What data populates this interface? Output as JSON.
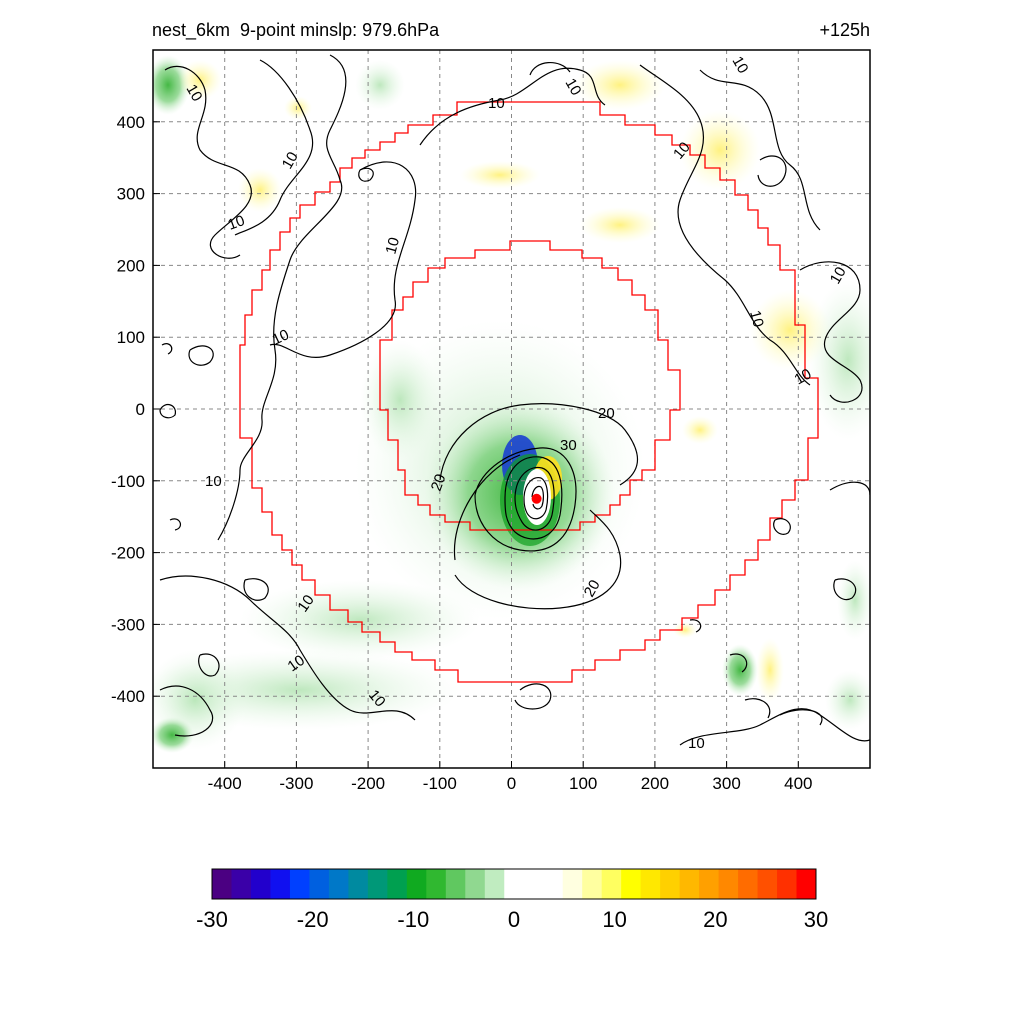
{
  "chart_data": {
    "type": "contour",
    "title_left": "nest_6km  9-point minslp: 979.6hPa",
    "title_right": "+125h",
    "x_ticks": [
      -400,
      -300,
      -200,
      -100,
      0,
      100,
      200,
      300,
      400
    ],
    "y_ticks": [
      400,
      300,
      200,
      100,
      0,
      -100,
      -200,
      -300,
      -400
    ],
    "xlim": [
      -500,
      500
    ],
    "ylim": [
      -500,
      500
    ],
    "grid": true,
    "contour_levels": [
      10,
      20,
      30
    ],
    "contour_label_values": [
      "10",
      "20",
      "30"
    ],
    "center_marker": {
      "x": 35,
      "y": -125
    },
    "colorbar": {
      "ticks": [
        -30,
        -20,
        -10,
        0,
        10,
        20,
        30
      ],
      "min": -30,
      "max": 30,
      "colors": [
        "#4b0082",
        "#3a00a8",
        "#2200cc",
        "#1010f0",
        "#0040ff",
        "#0060e0",
        "#0078c8",
        "#008aa0",
        "#009878",
        "#00a050",
        "#10aa20",
        "#30b830",
        "#60c860",
        "#90d890",
        "#c0ecc0",
        "#ffffff",
        "#ffffff",
        "#ffffff",
        "#ffffe0",
        "#ffffa0",
        "#ffff60",
        "#ffff00",
        "#ffe800",
        "#ffd000",
        "#ffb800",
        "#ffa000",
        "#ff8800",
        "#ff6c00",
        "#ff5000",
        "#ff3000",
        "#ff0000"
      ]
    }
  }
}
